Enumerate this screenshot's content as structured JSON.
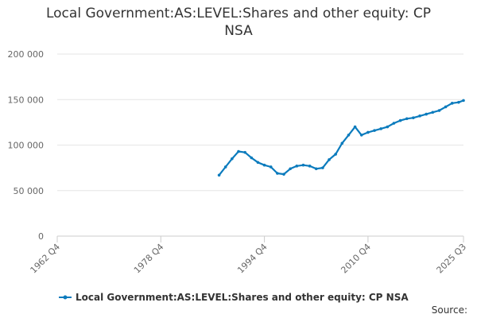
{
  "chart_data": {
    "type": "line",
    "title": "Local Government:AS:LEVEL:Shares and other equity: CP\nNSA",
    "xlabel": "",
    "ylabel": "",
    "x_tick_labels": [
      "1962 Q4",
      "1978 Q4",
      "1994 Q4",
      "2010 Q4",
      "2025 Q3"
    ],
    "y_tick_labels": [
      "0",
      "50 000",
      "100 000",
      "150 000",
      "200 000"
    ],
    "ylim": [
      0,
      200000
    ],
    "grid": true,
    "legend_position": "bottom",
    "series": [
      {
        "name": "Local Government:AS:LEVEL:Shares and other equity: CP NSA",
        "color": "#0b7bbd",
        "x": [
          "1987 Q4",
          "1988 Q4",
          "1989 Q4",
          "1990 Q4",
          "1991 Q4",
          "1992 Q4",
          "1993 Q4",
          "1994 Q4",
          "1995 Q4",
          "1996 Q4",
          "1997 Q4",
          "1998 Q4",
          "1999 Q4",
          "2000 Q4",
          "2001 Q4",
          "2002 Q4",
          "2003 Q4",
          "2004 Q4",
          "2005 Q4",
          "2006 Q4",
          "2007 Q4",
          "2008 Q4",
          "2009 Q4",
          "2010 Q4",
          "2011 Q4",
          "2012 Q4",
          "2013 Q4",
          "2014 Q4",
          "2015 Q4",
          "2016 Q4",
          "2017 Q4",
          "2018 Q4",
          "2019 Q4",
          "2020 Q4",
          "2021 Q4",
          "2022 Q4",
          "2023 Q4",
          "2024 Q4",
          "2025 Q3"
        ],
        "values": [
          67000,
          76000,
          85000,
          93000,
          92000,
          86000,
          81000,
          78000,
          76000,
          69000,
          68000,
          74000,
          77000,
          78000,
          77000,
          74000,
          75000,
          84000,
          90000,
          102000,
          111000,
          120000,
          111000,
          114000,
          116000,
          118000,
          120000,
          124000,
          127000,
          129000,
          130000,
          132000,
          134000,
          136000,
          138000,
          142000,
          146000,
          147000,
          149000
        ]
      }
    ]
  },
  "legend": {
    "label": "Local Government:AS:LEVEL:Shares and other equity: CP NSA"
  },
  "footer": {
    "source_label": "Source:"
  }
}
